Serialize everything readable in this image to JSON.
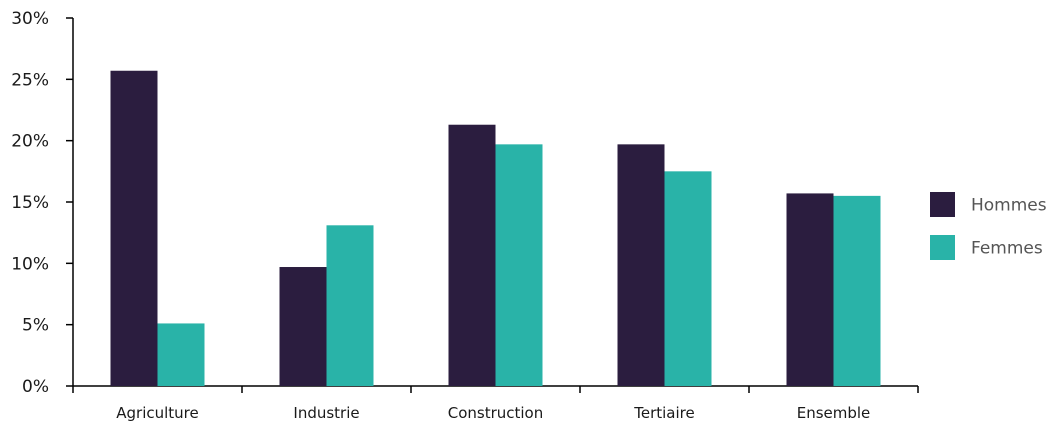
{
  "chart_data": {
    "type": "bar",
    "title": "",
    "xlabel": "",
    "ylabel": "",
    "categories": [
      "Agriculture",
      "Industrie",
      "Construction",
      "Tertiaire",
      "Ensemble"
    ],
    "series": [
      {
        "name": "Hommes",
        "values": [
          25.7,
          9.7,
          21.3,
          19.7,
          15.7
        ],
        "color": "#2b1d3f"
      },
      {
        "name": "Femmes",
        "values": [
          5.1,
          13.1,
          19.7,
          17.5,
          15.5
        ],
        "color": "#29b3a8"
      }
    ],
    "ylim": [
      0,
      30
    ],
    "yticks": [
      0,
      5,
      10,
      15,
      20,
      25,
      30
    ],
    "ytick_labels": [
      "0%",
      "5%",
      "10%",
      "15%",
      "20%",
      "25%",
      "30%"
    ],
    "grid": false,
    "legend_position": "right"
  }
}
